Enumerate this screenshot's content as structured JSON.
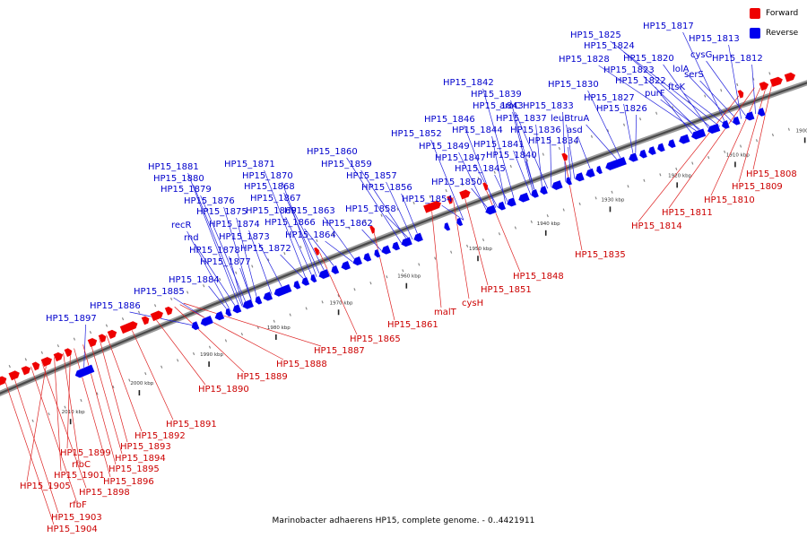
{
  "legend": [
    {
      "label": "Forward",
      "color": "#ee0000"
    },
    {
      "label": "Reverse",
      "color": "#0000ee"
    }
  ],
  "caption": "Marinobacter adhaerens HP15, complete genome. - 0..4421911",
  "colors": {
    "forward": "#ee0000",
    "reverse": "#0000ee",
    "label_forward": "#cc0000",
    "label_reverse": "#0000cc",
    "line_forward": "#dd2222",
    "line_reverse": "#2222dd",
    "axis": "#777777"
  },
  "tick_labels": [
    "1900 kbp",
    "1910 kbp",
    "1920 kbp",
    "1930 kbp",
    "1940 kbp",
    "1950 kbp",
    "1960 kbp",
    "1970 kbp",
    "1980 kbp",
    "1990 kbp",
    "2000 kbp",
    "2010 kbp"
  ],
  "reverse_labels": [
    "HP15_1817",
    "HP15_1825",
    "HP15_1813",
    "HP15_1824",
    "cysG",
    "HP15_1828",
    "HP15_1820",
    "HP15_1812",
    "lolA",
    "HP15_1823",
    "serS",
    "HP15_1822",
    "ftsK",
    "HP15_1842",
    "HP15_1830",
    "purF",
    "HP15_1839",
    "HP15_1827",
    "HP15_1843",
    "aroC",
    "HP15_1833",
    "HP15_1826",
    "HP15_1846",
    "HP15_1837",
    "leuB",
    "truA",
    "HP15_1844",
    "HP15_1836",
    "asd",
    "HP15_1852",
    "HP15_1841",
    "HP15_1834",
    "HP15_1849",
    "HP15_1860",
    "HP15_1840",
    "HP15_1847",
    "HP15_1859",
    "HP15_1845",
    "HP15_1881",
    "HP15_1871",
    "HP15_1880",
    "HP15_1870",
    "HP15_1857",
    "HP15_1850",
    "HP15_1879",
    "HP15_1868",
    "HP15_1856",
    "HP15_1876",
    "HP15_1867",
    "HP15_1854",
    "HP15_1875",
    "HP15_1869",
    "HP15_1863",
    "HP15_1858",
    "recR",
    "HP15_1874",
    "HP15_1866",
    "HP15_1862",
    "rnd",
    "HP15_1873",
    "HP15_1864",
    "HP15_1878",
    "HP15_1872",
    "HP15_1877",
    "HP15_1884",
    "HP15_1885",
    "HP15_1886",
    "HP15_1897"
  ],
  "forward_labels": [
    "HP15_1808",
    "HP15_1809",
    "HP15_1810",
    "HP15_1811",
    "HP15_1814",
    "HP15_1835",
    "HP15_1848",
    "HP15_1851",
    "cysH",
    "malT",
    "HP15_1861",
    "HP15_1865",
    "HP15_1887",
    "HP15_1888",
    "HP15_1889",
    "HP15_1890",
    "HP15_1891",
    "HP15_1892",
    "HP15_1893",
    "HP15_1894",
    "HP15_1899",
    "HP15_1895",
    "rfbC",
    "HP15_1901",
    "HP15_1896",
    "HP15_1905",
    "HP15_1898",
    "rfbF",
    "HP15_1903",
    "HP15_1904"
  ]
}
